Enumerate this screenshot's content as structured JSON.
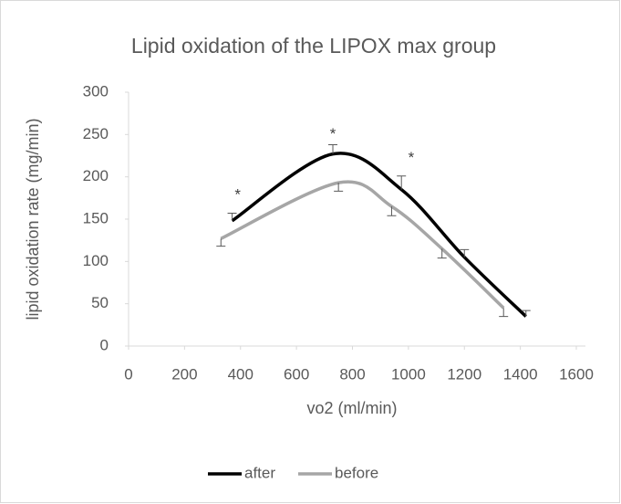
{
  "chart_data": {
    "type": "line",
    "title": "Lipid oxidation of the LIPOX max group",
    "x_label": "vo2 (ml/min)",
    "y_label": "lipid oxidation rate  (mg/min)",
    "xlim": [
      0,
      1600
    ],
    "xticks": [
      0,
      200,
      400,
      600,
      800,
      1000,
      1200,
      1400,
      1600
    ],
    "ylim": [
      0,
      300
    ],
    "yticks": [
      0,
      50,
      100,
      150,
      200,
      250,
      300
    ],
    "smooth": true,
    "grid": false,
    "legend": "bottom",
    "series": [
      {
        "name": "after",
        "color": "#000000",
        "error_direction": "plus",
        "x": [
          370,
          730,
          975,
          1200,
          1420
        ],
        "values": [
          148,
          227,
          185,
          105,
          35
        ],
        "errors": [
          9,
          11,
          16,
          9,
          7
        ]
      },
      {
        "name": "before",
        "color": "#a6a6a6",
        "error_direction": "minus",
        "x": [
          330,
          750,
          940,
          1120,
          1340
        ],
        "values": [
          127,
          193,
          165,
          115,
          45
        ],
        "errors": [
          9,
          10,
          11,
          11,
          10
        ]
      }
    ],
    "annotations": [
      {
        "text": "*",
        "x": 390,
        "y": 178
      },
      {
        "text": "*",
        "x": 730,
        "y": 250
      },
      {
        "text": "*",
        "x": 1010,
        "y": 222
      }
    ]
  }
}
